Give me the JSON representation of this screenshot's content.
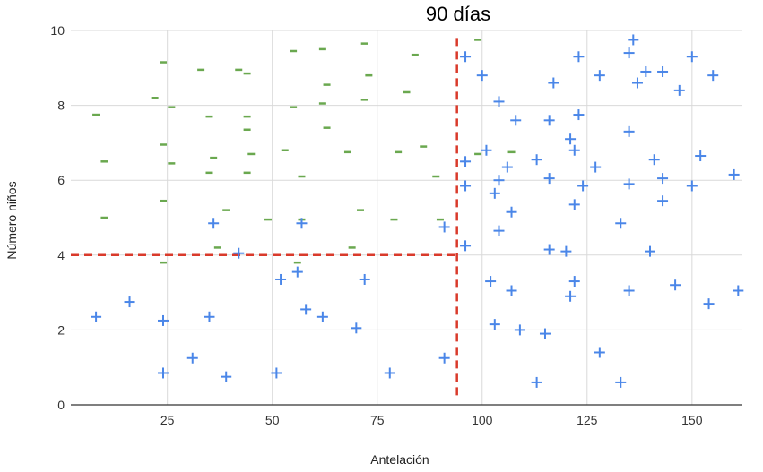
{
  "chart_data": {
    "type": "scatter",
    "title": "90 días",
    "xlabel": "Antelación",
    "ylabel": "Número niños",
    "xlim": [
      2,
      162
    ],
    "ylim": [
      0,
      10
    ],
    "xticks": [
      "25",
      "50",
      "75",
      "100",
      "125",
      "150"
    ],
    "xtick_values": [
      25,
      50,
      75,
      100,
      125,
      150
    ],
    "yticks": [
      "0",
      "2",
      "4",
      "6",
      "8",
      "10"
    ],
    "ytick_values": [
      0,
      2,
      4,
      6,
      8,
      10
    ],
    "grid": true,
    "reference_lines": [
      {
        "orientation": "vertical",
        "x": 94,
        "y_range": [
          0.2,
          9.8
        ],
        "color": "#d93a2b",
        "style": "dashed"
      },
      {
        "orientation": "horizontal",
        "y": 4,
        "x_range": [
          2,
          94
        ],
        "color": "#d93a2b",
        "style": "dashed"
      }
    ],
    "series": [
      {
        "name": "minus",
        "marker": "-",
        "color": "#6aa84f",
        "points": [
          [
            8,
            7.75
          ],
          [
            10,
            6.5
          ],
          [
            10,
            5.0
          ],
          [
            22,
            8.2
          ],
          [
            24,
            9.15
          ],
          [
            24,
            6.95
          ],
          [
            24,
            5.45
          ],
          [
            24,
            3.8
          ],
          [
            26,
            7.95
          ],
          [
            26,
            6.45
          ],
          [
            33,
            8.95
          ],
          [
            35,
            7.7
          ],
          [
            35,
            6.2
          ],
          [
            36,
            6.6
          ],
          [
            37,
            4.2
          ],
          [
            39,
            5.2
          ],
          [
            42,
            8.95
          ],
          [
            44,
            8.85
          ],
          [
            44,
            7.7
          ],
          [
            44,
            7.35
          ],
          [
            44,
            6.2
          ],
          [
            45,
            6.7
          ],
          [
            49,
            4.95
          ],
          [
            55,
            9.45
          ],
          [
            55,
            7.95
          ],
          [
            53,
            6.8
          ],
          [
            56,
            3.8
          ],
          [
            57,
            6.1
          ],
          [
            57,
            4.95
          ],
          [
            62,
            9.5
          ],
          [
            62,
            8.05
          ],
          [
            63,
            8.55
          ],
          [
            63,
            7.4
          ],
          [
            68,
            6.75
          ],
          [
            69,
            4.2
          ],
          [
            71,
            5.2
          ],
          [
            72,
            9.65
          ],
          [
            72,
            8.15
          ],
          [
            73,
            8.8
          ],
          [
            80,
            6.75
          ],
          [
            79,
            4.95
          ],
          [
            82,
            8.35
          ],
          [
            84,
            9.35
          ],
          [
            86,
            6.9
          ],
          [
            89,
            6.1
          ],
          [
            90,
            4.95
          ],
          [
            99,
            9.75
          ],
          [
            99,
            6.7
          ],
          [
            107,
            6.75
          ]
        ]
      },
      {
        "name": "plus",
        "marker": "+",
        "color": "#4a86e8",
        "points": [
          [
            8,
            2.35
          ],
          [
            16,
            2.75
          ],
          [
            24,
            2.25
          ],
          [
            24,
            0.85
          ],
          [
            31,
            1.25
          ],
          [
            35,
            2.35
          ],
          [
            36,
            4.85
          ],
          [
            39,
            0.75
          ],
          [
            42,
            4.05
          ],
          [
            51,
            0.85
          ],
          [
            52,
            3.35
          ],
          [
            56,
            3.55
          ],
          [
            57,
            4.85
          ],
          [
            58,
            2.55
          ],
          [
            62,
            2.35
          ],
          [
            70,
            2.05
          ],
          [
            72,
            3.35
          ],
          [
            78,
            0.85
          ],
          [
            91,
            4.75
          ],
          [
            91,
            1.25
          ],
          [
            96,
            9.3
          ],
          [
            96,
            6.5
          ],
          [
            96,
            5.85
          ],
          [
            96,
            4.25
          ],
          [
            100,
            8.8
          ],
          [
            101,
            6.8
          ],
          [
            102,
            3.3
          ],
          [
            103,
            5.65
          ],
          [
            103,
            2.15
          ],
          [
            104,
            8.1
          ],
          [
            104,
            6.0
          ],
          [
            104,
            4.65
          ],
          [
            106,
            6.35
          ],
          [
            107,
            5.15
          ],
          [
            107,
            3.05
          ],
          [
            108,
            7.6
          ],
          [
            109,
            2.0
          ],
          [
            113,
            6.55
          ],
          [
            113,
            0.6
          ],
          [
            115,
            1.9
          ],
          [
            116,
            7.6
          ],
          [
            116,
            6.05
          ],
          [
            116,
            4.15
          ],
          [
            117,
            8.6
          ],
          [
            120,
            4.1
          ],
          [
            121,
            7.1
          ],
          [
            121,
            2.9
          ],
          [
            122,
            6.8
          ],
          [
            122,
            5.35
          ],
          [
            122,
            3.3
          ],
          [
            123,
            7.75
          ],
          [
            123,
            9.3
          ],
          [
            124,
            5.85
          ],
          [
            127,
            6.35
          ],
          [
            128,
            8.8
          ],
          [
            128,
            1.4
          ],
          [
            133,
            4.85
          ],
          [
            133,
            0.6
          ],
          [
            135,
            9.4
          ],
          [
            135,
            7.3
          ],
          [
            135,
            5.9
          ],
          [
            135,
            3.05
          ],
          [
            136,
            9.75
          ],
          [
            137,
            8.6
          ],
          [
            139,
            8.9
          ],
          [
            140,
            4.1
          ],
          [
            141,
            6.55
          ],
          [
            143,
            8.9
          ],
          [
            143,
            6.05
          ],
          [
            143,
            5.45
          ],
          [
            146,
            3.2
          ],
          [
            147,
            8.4
          ],
          [
            150,
            9.3
          ],
          [
            150,
            5.85
          ],
          [
            152,
            6.65
          ],
          [
            154,
            2.7
          ],
          [
            155,
            8.8
          ],
          [
            160,
            6.15
          ],
          [
            161,
            3.05
          ]
        ]
      }
    ]
  }
}
